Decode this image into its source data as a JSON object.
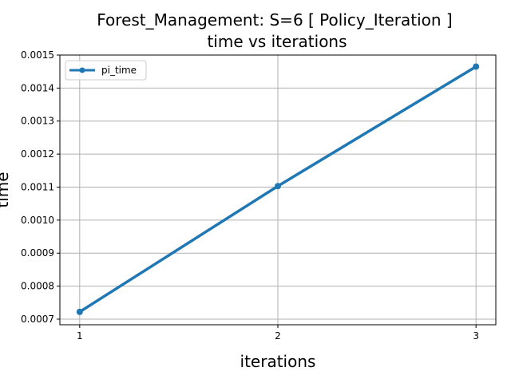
{
  "chart_data": {
    "type": "line",
    "title_line1": "Forest_Management: S=6 [ Policy_Iteration ]",
    "title_line2": "time vs iterations",
    "xlabel": "iterations",
    "ylabel": "time",
    "x": [
      1,
      2,
      3
    ],
    "x_ticks": [
      "1",
      "2",
      "3"
    ],
    "xlim": [
      0.9,
      3.1
    ],
    "ylim": [
      0.000683,
      0.0015
    ],
    "y_ticks": [
      "0.0007",
      "0.0008",
      "0.0009",
      "0.0010",
      "0.0011",
      "0.0012",
      "0.0013",
      "0.0014",
      "0.0015"
    ],
    "y_tick_values": [
      0.0007,
      0.0008,
      0.0009,
      0.001,
      0.0011,
      0.0012,
      0.0013,
      0.0014,
      0.0015
    ],
    "grid": true,
    "legend_position": "top-left",
    "series": [
      {
        "name": "pi_time",
        "color": "#1f77b4",
        "values": [
          0.000722,
          0.001103,
          0.001465
        ]
      }
    ]
  }
}
